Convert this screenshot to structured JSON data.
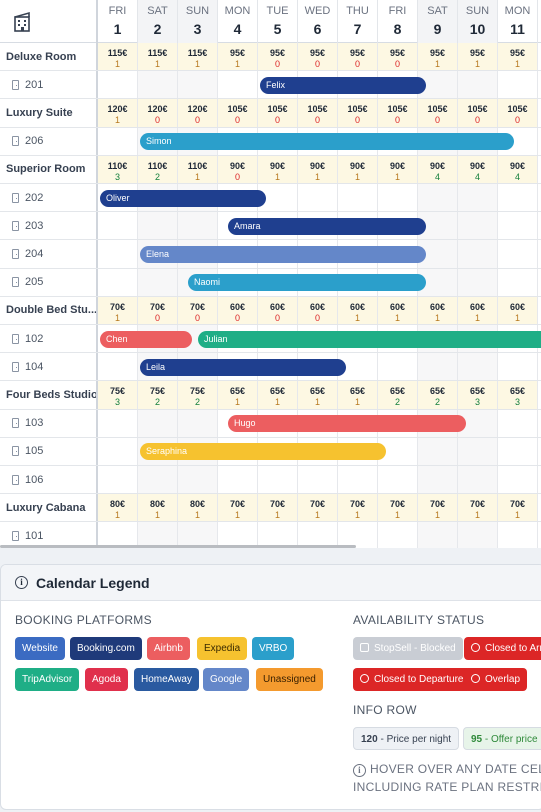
{
  "header": {
    "corner_icon": "building-icon",
    "days": [
      {
        "dow": "FRI",
        "num": "1",
        "wk": false
      },
      {
        "dow": "SAT",
        "num": "2",
        "wk": true
      },
      {
        "dow": "SUN",
        "num": "3",
        "wk": true
      },
      {
        "dow": "MON",
        "num": "4",
        "wk": false
      },
      {
        "dow": "TUE",
        "num": "5",
        "wk": false
      },
      {
        "dow": "WED",
        "num": "6",
        "wk": false
      },
      {
        "dow": "THU",
        "num": "7",
        "wk": false
      },
      {
        "dow": "FRI",
        "num": "8",
        "wk": false
      },
      {
        "dow": "SAT",
        "num": "9",
        "wk": true
      },
      {
        "dow": "SUN",
        "num": "10",
        "wk": true
      },
      {
        "dow": "MON",
        "num": "11",
        "wk": false
      }
    ]
  },
  "rows": [
    {
      "kind": "type",
      "label": "Deluxe Room",
      "prices": [
        "115€",
        "115€",
        "115€",
        "95€",
        "95€",
        "95€",
        "95€",
        "95€",
        "95€",
        "95€",
        "95€"
      ],
      "avail": [
        1,
        1,
        1,
        1,
        0,
        0,
        0,
        0,
        1,
        1,
        1
      ]
    },
    {
      "kind": "room",
      "label": "201",
      "bookings": [
        {
          "guest": "Felix",
          "start": 4,
          "end": 8.2,
          "color": "#1f3f8f"
        }
      ]
    },
    {
      "kind": "type",
      "label": "Luxury Suite",
      "prices": [
        "120€",
        "120€",
        "120€",
        "105€",
        "105€",
        "105€",
        "105€",
        "105€",
        "105€",
        "105€",
        "105€"
      ],
      "avail": [
        1,
        0,
        0,
        0,
        0,
        0,
        0,
        0,
        0,
        0,
        0
      ]
    },
    {
      "kind": "room",
      "label": "206",
      "bookings": [
        {
          "guest": "Simon",
          "start": 1,
          "end": 10.4,
          "color": "#2b9fcb"
        }
      ]
    },
    {
      "kind": "type",
      "label": "Superior Room",
      "prices": [
        "110€",
        "110€",
        "110€",
        "90€",
        "90€",
        "90€",
        "90€",
        "90€",
        "90€",
        "90€",
        "90€"
      ],
      "avail": [
        3,
        2,
        1,
        0,
        1,
        1,
        1,
        1,
        4,
        4,
        4
      ]
    },
    {
      "kind": "room",
      "label": "202",
      "bookings": [
        {
          "guest": "Oliver",
          "start": 0,
          "end": 4.2,
          "color": "#1f3f8f"
        }
      ]
    },
    {
      "kind": "room",
      "label": "203",
      "bookings": [
        {
          "guest": "Amara",
          "start": 3.2,
          "end": 8.2,
          "color": "#1f3f8f"
        }
      ]
    },
    {
      "kind": "room",
      "label": "204",
      "bookings": [
        {
          "guest": "Elena",
          "start": 1,
          "end": 8.2,
          "color": "#6487c9"
        }
      ]
    },
    {
      "kind": "room",
      "label": "205",
      "bookings": [
        {
          "guest": "Naomi",
          "start": 2.2,
          "end": 8.2,
          "color": "#2b9fcb"
        }
      ]
    },
    {
      "kind": "type",
      "label": "Double Bed Stu...",
      "prices": [
        "70€",
        "70€",
        "70€",
        "60€",
        "60€",
        "60€",
        "60€",
        "60€",
        "60€",
        "60€",
        "60€"
      ],
      "avail": [
        1,
        0,
        0,
        0,
        0,
        0,
        1,
        1,
        1,
        1,
        1
      ]
    },
    {
      "kind": "room",
      "label": "102",
      "bookings": [
        {
          "guest": "Chen",
          "start": 0,
          "end": 2.35,
          "color": "#ec5e60"
        },
        {
          "guest": "Julian",
          "start": 2.45,
          "end": 11.5,
          "color": "#1fae86"
        }
      ]
    },
    {
      "kind": "room",
      "label": "104",
      "bookings": [
        {
          "guest": "Leila",
          "start": 1,
          "end": 6.2,
          "color": "#1f3f8f"
        }
      ]
    },
    {
      "kind": "type",
      "label": "Four Beds Studio",
      "prices": [
        "75€",
        "75€",
        "75€",
        "65€",
        "65€",
        "65€",
        "65€",
        "65€",
        "65€",
        "65€",
        "65€"
      ],
      "avail": [
        3,
        2,
        2,
        1,
        1,
        1,
        1,
        2,
        2,
        3,
        3
      ]
    },
    {
      "kind": "room",
      "label": "103",
      "bookings": [
        {
          "guest": "Hugo",
          "start": 3.2,
          "end": 9.2,
          "color": "#ec5e60"
        }
      ]
    },
    {
      "kind": "room",
      "label": "105",
      "bookings": [
        {
          "guest": "Seraphina",
          "start": 1,
          "end": 7.2,
          "color": "#f6c22f"
        }
      ]
    },
    {
      "kind": "room",
      "label": "106",
      "bookings": []
    },
    {
      "kind": "type",
      "label": "Luxury Cabana",
      "prices": [
        "80€",
        "80€",
        "80€",
        "70€",
        "70€",
        "70€",
        "70€",
        "70€",
        "70€",
        "70€",
        "70€"
      ],
      "avail": [
        1,
        1,
        1,
        1,
        1,
        1,
        1,
        1,
        1,
        1,
        1
      ]
    },
    {
      "kind": "room",
      "label": "101",
      "bookings": []
    }
  ],
  "avail_colors": {
    "0": "#dc2626",
    "1": "#b7791f",
    "2": "#15803d",
    "3": "#15803d",
    "4": "#15803d"
  },
  "legend": {
    "title": "Calendar Legend",
    "platforms_title": "BOOKING PLATFORMS",
    "platforms": [
      {
        "label": "Website",
        "bg": "#3b6bc2",
        "fg": "#ffffff"
      },
      {
        "label": "Booking.com",
        "bg": "#1f3a7a",
        "fg": "#ffffff"
      },
      {
        "label": "Airbnb",
        "bg": "#ec5e60",
        "fg": "#ffffff"
      },
      {
        "label": "Expedia",
        "bg": "#f6c22f",
        "fg": "#3a2a00"
      },
      {
        "label": "VRBO",
        "bg": "#2b9fcb",
        "fg": "#ffffff"
      },
      {
        "label": "TripAdvisor",
        "bg": "#1fae86",
        "fg": "#ffffff"
      },
      {
        "label": "Agoda",
        "bg": "#e0304c",
        "fg": "#ffffff"
      },
      {
        "label": "HomeAway",
        "bg": "#2a5aa0",
        "fg": "#ffffff"
      },
      {
        "label": "Google",
        "bg": "#6487c9",
        "fg": "#ffffff"
      },
      {
        "label": "Unassigned",
        "bg": "#f49a2e",
        "fg": "#3a2000"
      }
    ],
    "availability_title": "AVAILABILITY STATUS",
    "availability": [
      {
        "label": "StopSell - Blocked",
        "bg": "#c9cdd4",
        "fg": "#ffffff",
        "icon": "lock-icon"
      },
      {
        "label": "Closed to Arrival",
        "bg": "#dc2626",
        "fg": "#ffffff",
        "icon": "x-circle-icon"
      },
      {
        "label": "Closed to Departure",
        "bg": "#dc2626",
        "fg": "#ffffff",
        "icon": "x-circle-icon"
      },
      {
        "label": "Overlap",
        "bg": "#dc2626",
        "fg": "#ffffff",
        "icon": "info-circle-icon"
      }
    ],
    "info_title": "INFO ROW",
    "info_items": [
      {
        "value": "120",
        "text": " - Price per night",
        "bg": "#eef1f5",
        "fg": "#374151"
      },
      {
        "value": "95",
        "text": " - Offer price",
        "bg": "#e7f4e9",
        "fg": "#2f8a3a"
      }
    ],
    "hover_line1": "HOVER OVER ANY DATE CELL",
    "hover_line2": "INCLUDING RATE PLAN RESTRIC"
  }
}
